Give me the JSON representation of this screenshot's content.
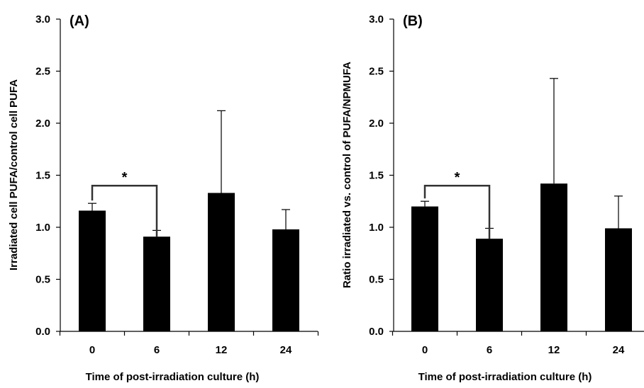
{
  "chart_data": [
    {
      "type": "bar",
      "panel_label": "(A)",
      "categories": [
        "0",
        "6",
        "12",
        "24"
      ],
      "values": [
        1.16,
        0.91,
        1.33,
        0.98
      ],
      "error_plus": [
        0.07,
        0.06,
        0.79,
        0.19
      ],
      "xlabel": "Time of post-irradiation culture (h)",
      "ylabel": "Irradiated cell PUFA/control cell PUFA",
      "ylim": [
        0,
        3.0
      ],
      "yticks": [
        "0.0",
        "0.5",
        "1.0",
        "1.5",
        "2.0",
        "2.5",
        "3.0"
      ],
      "grid": false,
      "bar_color": "#000000",
      "significance": {
        "from_category": "0",
        "to_category": "6",
        "label": "*",
        "y": 1.4
      }
    },
    {
      "type": "bar",
      "panel_label": "(B)",
      "categories": [
        "0",
        "6",
        "12",
        "24"
      ],
      "values": [
        1.2,
        0.89,
        1.42,
        0.99
      ],
      "error_plus": [
        0.05,
        0.1,
        1.01,
        0.31
      ],
      "xlabel": "Time of post-irradiation culture (h)",
      "ylabel": "Ratio irradiated vs. control of PUFA/NPMUFA",
      "ylim": [
        0,
        3.0
      ],
      "yticks": [
        "0.0",
        "0.5",
        "1.0",
        "1.5",
        "2.0",
        "2.5",
        "3.0"
      ],
      "grid": false,
      "bar_color": "#000000",
      "significance": {
        "from_category": "0",
        "to_category": "6",
        "label": "*",
        "y": 1.4
      }
    }
  ]
}
